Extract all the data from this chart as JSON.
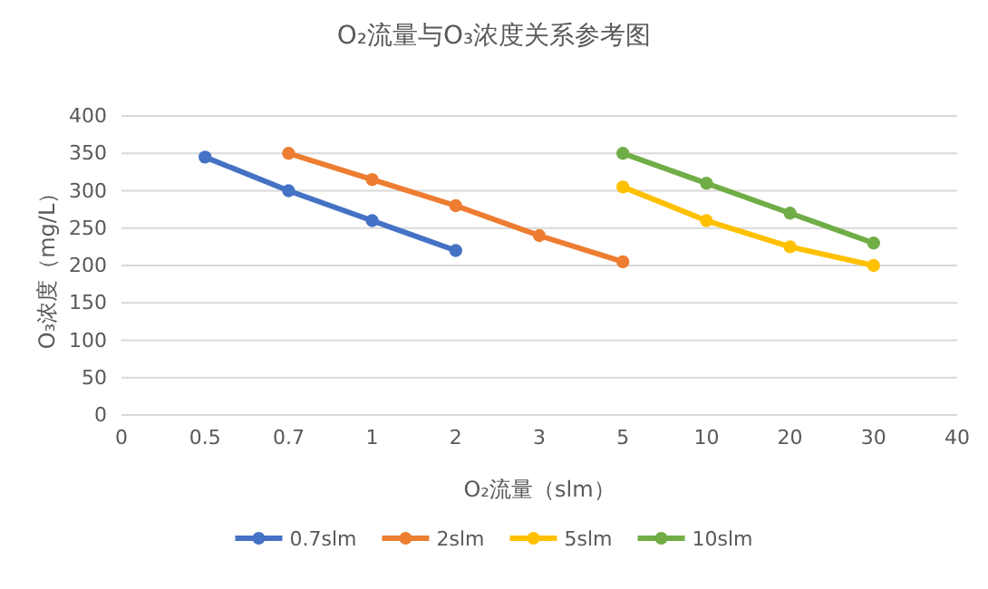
{
  "chart_data": {
    "type": "line",
    "title": "O₂流量与O₃浓度关系参考图",
    "xlabel": "O₂流量（slm）",
    "ylabel": "O₃浓度（mg/L）",
    "categories": [
      "0",
      "0.5",
      "0.7",
      "1",
      "2",
      "3",
      "5",
      "10",
      "20",
      "30",
      "40"
    ],
    "series": [
      {
        "name": "0.7slm",
        "color": "#4472c4",
        "values": [
          null,
          345,
          300,
          260,
          220,
          null,
          null,
          null,
          null,
          null,
          null
        ]
      },
      {
        "name": "2slm",
        "color": "#ed7d31",
        "values": [
          null,
          null,
          350,
          315,
          280,
          240,
          205,
          null,
          null,
          null,
          null
        ]
      },
      {
        "name": "5slm",
        "color": "#ffc000",
        "values": [
          null,
          null,
          null,
          null,
          null,
          null,
          305,
          260,
          225,
          200,
          null
        ]
      },
      {
        "name": "10slm",
        "color": "#70ad47",
        "values": [
          null,
          null,
          null,
          null,
          null,
          null,
          350,
          310,
          270,
          230,
          null
        ]
      }
    ],
    "ylim": [
      0,
      400
    ],
    "yticks": [
      0,
      50,
      100,
      150,
      200,
      250,
      300,
      350,
      400
    ],
    "grid": "y",
    "legend": "bottom",
    "marker": "circle",
    "line_style": "solid"
  }
}
